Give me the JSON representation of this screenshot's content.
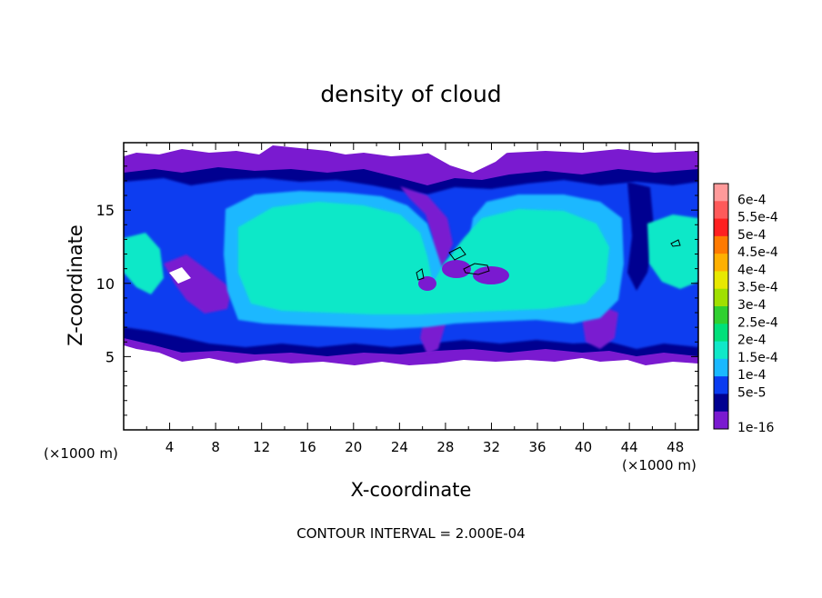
{
  "chart_data": {
    "type": "heatmap",
    "title": "density of cloud",
    "xlabel": "X-coordinate",
    "ylabel": "Z-coordinate",
    "x_unit_label": "(×1000 m)",
    "z_unit_label": "(×1000 m)",
    "footer": "CONTOUR INTERVAL = 2.000E-04",
    "xlim": [
      0,
      50
    ],
    "ylim": [
      0,
      19.6
    ],
    "x_ticks": [
      4,
      8,
      12,
      16,
      20,
      24,
      28,
      32,
      36,
      40,
      44,
      48
    ],
    "y_ticks": [
      5,
      10,
      15
    ],
    "colorbar": {
      "labels": [
        "6e-4",
        "5.5e-4",
        "5e-4",
        "4.5e-4",
        "4e-4",
        "3.5e-4",
        "3e-4",
        "2.5e-4",
        "2e-4",
        "1.5e-4",
        "1e-4",
        "5e-5",
        "1e-16"
      ],
      "colors": [
        "#ff9a9a",
        "#ff5a5a",
        "#ff2020",
        "#ff7a00",
        "#ffb000",
        "#e8e800",
        "#a0e000",
        "#30d030",
        "#00e07a",
        "#10e8c8",
        "#1ab8ff",
        "#0a3cf0",
        "#000090",
        "#7a1ad0"
      ]
    },
    "regions": [
      {
        "level": "1e-16",
        "color": "#7a1ad0",
        "x_range": [
          0,
          50
        ],
        "z_range": [
          4.8,
          19.2
        ]
      },
      {
        "level": "5e-5",
        "color": "#000090",
        "x_range": [
          0,
          50
        ],
        "z_range": [
          5.2,
          18.2
        ]
      },
      {
        "level": "1e-4",
        "color": "#0a3cf0",
        "x_range": [
          0,
          50
        ],
        "z_range": [
          5.5,
          17.6
        ]
      },
      {
        "level": "1.5e-4",
        "color": "#1ab8ff",
        "x_range": [
          9,
          42
        ],
        "z_range": [
          6.5,
          16.8
        ]
      },
      {
        "level": "2e-4",
        "color": "#10e8c8",
        "x_range": [
          9.5,
          41
        ],
        "z_range": [
          7.5,
          16.5
        ]
      }
    ],
    "contour_level": "2e-4"
  }
}
